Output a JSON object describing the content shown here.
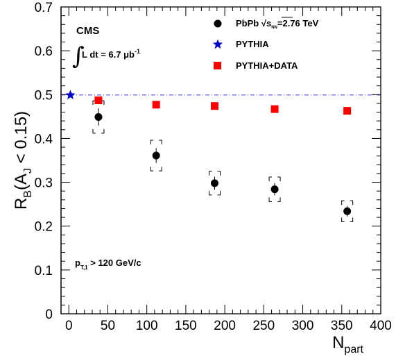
{
  "chart_data": {
    "type": "scatter",
    "xlabel_main": "N",
    "xlabel_sub": "part",
    "ylabel": {
      "r": "R",
      "r_sub": "B",
      "open": "(A",
      "a_sub": "J",
      "rest": " < 0.15)"
    },
    "xlim": [
      -10,
      400
    ],
    "ylim": [
      0,
      0.7
    ],
    "x_ticks": [
      0,
      50,
      100,
      150,
      200,
      250,
      300,
      350,
      400
    ],
    "y_ticks": [
      0,
      0.1,
      0.2,
      0.3,
      0.4,
      0.5,
      0.6,
      0.7
    ],
    "y_tick_labels": [
      "0",
      "0.1",
      "0.2",
      "0.3",
      "0.4",
      "0.5",
      "0.6",
      "0.7"
    ],
    "grid": false,
    "legend_position": "top-right",
    "series": [
      {
        "name": "PbPb √s_NN=2.76 TeV",
        "marker": "circle",
        "color": "#000000",
        "x": [
          38,
          112,
          187,
          264,
          357
        ],
        "y": [
          0.449,
          0.361,
          0.298,
          0.284,
          0.234
        ],
        "stat_err": [
          0.02,
          0.017,
          0.015,
          0.014,
          0.012
        ],
        "sys_err": [
          0.037,
          0.035,
          0.027,
          0.028,
          0.024
        ]
      },
      {
        "name": "PYTHIA",
        "marker": "star",
        "color": "#0000cc",
        "x": [
          2
        ],
        "y": [
          0.499
        ]
      },
      {
        "name": "PYTHIA+DATA",
        "marker": "square",
        "color": "#ff0000",
        "x": [
          38,
          112,
          187,
          264,
          357
        ],
        "y": [
          0.487,
          0.477,
          0.474,
          0.467,
          0.463
        ]
      }
    ],
    "reference_line": {
      "y": 0.499,
      "color": "#3333cc",
      "style": "dash-dot"
    },
    "annotations": {
      "experiment": "CMS",
      "luminosity": "L dt = 6.7 μb",
      "luminosity_exp": "-1",
      "cut_p": "p",
      "cut_sub": "T,1",
      "cut_rest": " > 120 GeV/c"
    },
    "legend": {
      "pbpb_prefix": "PbPb √s",
      "pbpb_sub": "NN",
      "pbpb_suffix": "=2.76 TeV",
      "pythia": "PYTHIA",
      "pythia_data": "PYTHIA+DATA"
    }
  }
}
